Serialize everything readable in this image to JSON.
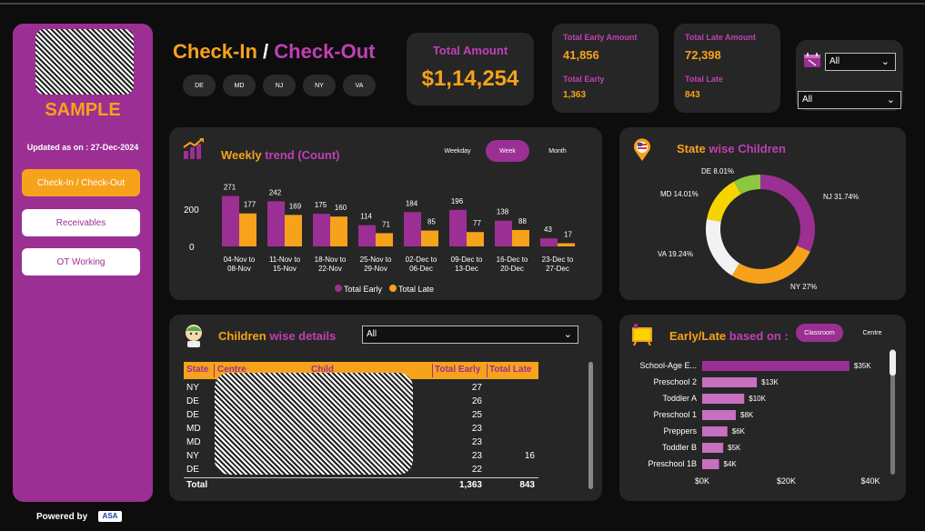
{
  "sidebar": {
    "brand": "SAMPLE",
    "updated": "Updated as on : 27-Dec-2024",
    "nav": [
      "Check-In / Check-Out",
      "Receivables",
      "OT Working"
    ],
    "powered_by": "Powered by",
    "powered_logo": "ASA"
  },
  "header": {
    "title_part1": "Check-In",
    "title_sep": " / ",
    "title_part2": "Check-Out",
    "states": [
      "DE",
      "MD",
      "NJ",
      "NY",
      "VA"
    ]
  },
  "kpi": {
    "total_amount_label": "Total Amount",
    "total_amount_value": "$1,14,254",
    "early_amount_label": "Total Early Amount",
    "early_amount_value": "41,856",
    "early_label": "Total Early",
    "early_value": "1,363",
    "late_amount_label": "Total Late Amount",
    "late_amount_value": "72,398",
    "late_label": "Total Late",
    "late_value": "843"
  },
  "filters": {
    "filter1": "All",
    "filter2": "All"
  },
  "weekly": {
    "title_a": "Weekly",
    "title_b": "trend (Count)",
    "toggles": [
      "Weekday",
      "Week",
      "Month"
    ],
    "active_toggle": "Week"
  },
  "chart_data": [
    {
      "type": "bar",
      "title": "Weekly trend (Count)",
      "categories": [
        "04-Nov to 08-Nov",
        "11-Nov to 15-Nov",
        "18-Nov to 22-Nov",
        "25-Nov to 29-Nov",
        "02-Dec to 06-Dec",
        "09-Dec to 13-Dec",
        "16-Dec to 20-Dec",
        "23-Dec to 27-Dec"
      ],
      "category_lines": [
        [
          "04-Nov to",
          "08-Nov"
        ],
        [
          "11-Nov to",
          "15-Nov"
        ],
        [
          "18-Nov to",
          "22-Nov"
        ],
        [
          "25-Nov to",
          "29-Nov"
        ],
        [
          "02-Dec to",
          "06-Dec"
        ],
        [
          "09-Dec to",
          "13-Dec"
        ],
        [
          "16-Dec to",
          "20-Dec"
        ],
        [
          "23-Dec to",
          "27-Dec"
        ]
      ],
      "series": [
        {
          "name": "Total Early",
          "values": [
            271,
            242,
            175,
            114,
            184,
            196,
            138,
            43
          ],
          "color": "#9c2f93"
        },
        {
          "name": "Total Late",
          "values": [
            177,
            169,
            160,
            71,
            85,
            77,
            88,
            17
          ],
          "color": "#f7a21b"
        }
      ],
      "yticks": [
        "200",
        "0"
      ],
      "ylim": [
        0,
        300
      ],
      "legend": "bottom"
    },
    {
      "type": "pie",
      "title": "State wise Children",
      "slices": [
        {
          "label": "NJ 31.74%",
          "name": "NJ",
          "value": 31.74,
          "color": "#9c2f93"
        },
        {
          "label": "NY 27%",
          "name": "NY",
          "value": 27.0,
          "color": "#f7a21b"
        },
        {
          "label": "VA 19.24%",
          "name": "VA",
          "value": 19.24,
          "color": "#f2f2f2"
        },
        {
          "label": "MD 14.01%",
          "name": "MD",
          "value": 14.01,
          "color": "#f5d400"
        },
        {
          "label": "DE 8.01%",
          "name": "DE",
          "value": 8.01,
          "color": "#8dc63f"
        }
      ]
    },
    {
      "type": "bar",
      "orientation": "horizontal",
      "title": "Early/Late based on :",
      "categories": [
        "School-Age E...",
        "Preschool 2",
        "Toddler A",
        "Preschool 1",
        "Preppers",
        "Toddler B",
        "Preschool 1B"
      ],
      "values": [
        35,
        13,
        10,
        8,
        6,
        5,
        4
      ],
      "value_labels": [
        "$35K",
        "$13K",
        "$10K",
        "$8K",
        "$6K",
        "$5K",
        "$4K"
      ],
      "xticks": [
        "$0K",
        "$20K",
        "$40K"
      ],
      "xlim": [
        0,
        40
      ],
      "color": "#c86fc0"
    }
  ],
  "state_panel": {
    "title_a": "State",
    "title_b": "wise Children"
  },
  "children": {
    "title_a": "Children",
    "title_b": "wise details",
    "filter": "All",
    "columns": [
      "State",
      "Centre",
      "Child",
      "Total Early",
      "Total Late"
    ],
    "rows": [
      {
        "state": "NY",
        "early": "27",
        "late": ""
      },
      {
        "state": "DE",
        "early": "26",
        "late": ""
      },
      {
        "state": "DE",
        "early": "25",
        "late": ""
      },
      {
        "state": "MD",
        "early": "23",
        "late": ""
      },
      {
        "state": "MD",
        "early": "23",
        "late": ""
      },
      {
        "state": "NY",
        "early": "23",
        "late": "16"
      },
      {
        "state": "DE",
        "early": "22",
        "late": ""
      }
    ],
    "total_label": "Total",
    "total_early": "1,363",
    "total_late": "843"
  },
  "early_late": {
    "title_a": "Early/Late",
    "title_b": "based on :",
    "toggles": [
      "Classroom",
      "Centre"
    ],
    "active_toggle": "Classroom"
  }
}
